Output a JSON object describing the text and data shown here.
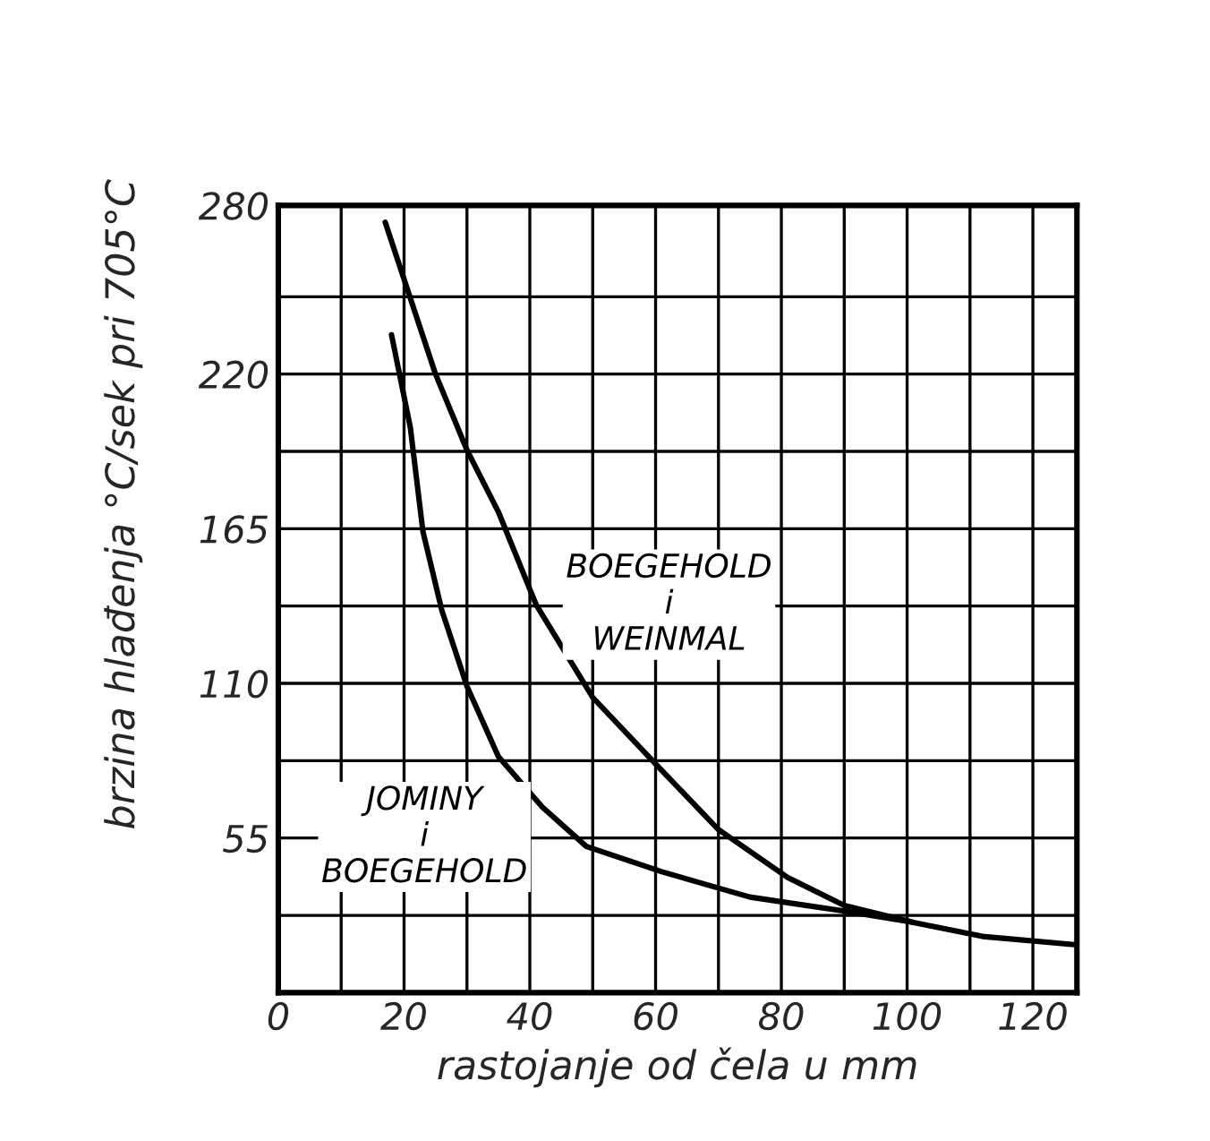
{
  "chart_data": {
    "type": "line",
    "xlabel": "rastojanje od čela u mm",
    "ylabel": "brzina hlađenja °C/sek pri 705°C",
    "series": [
      {
        "name": "BOEGEHOLD\ni\nWEINMAL",
        "color": "#000000",
        "x": [
          17,
          21,
          25,
          30,
          35,
          41,
          50,
          61,
          70,
          81,
          90,
          101,
          112,
          127
        ],
        "values": [
          274,
          247,
          220,
          193,
          171,
          138,
          105,
          79,
          58,
          41,
          31,
          25,
          20,
          17
        ]
      },
      {
        "name": "JOMINY\ni\nBOEGEHOLD",
        "color": "#000000",
        "x": [
          18,
          21,
          23,
          26,
          30,
          35,
          42,
          49,
          61,
          75,
          90,
          101
        ],
        "values": [
          234,
          201,
          164,
          136,
          109,
          84,
          66,
          52,
          43,
          34,
          29,
          25
        ]
      }
    ],
    "xlim": [
      0,
      127
    ],
    "xticks": [
      0,
      {
        "value": 10,
        "label": null
      },
      20,
      {
        "value": 30,
        "label": null
      },
      40,
      {
        "value": 50,
        "label": null
      },
      60,
      {
        "value": 70,
        "label": null
      },
      80,
      {
        "value": 90,
        "label": null
      },
      100,
      {
        "value": 110,
        "label": null
      },
      120
    ],
    "ylim": [
      0,
      280
    ],
    "yticks": [
      {
        "value": 27.5,
        "label": null
      },
      55,
      {
        "value": 82.5,
        "label": null
      },
      110,
      {
        "value": 137.5,
        "label": null
      },
      165,
      {
        "value": 192.5,
        "label": null
      },
      220,
      {
        "value": 247.5,
        "label": null
      },
      280
    ],
    "grid": true,
    "marker": "none",
    "line_style": "solid"
  }
}
